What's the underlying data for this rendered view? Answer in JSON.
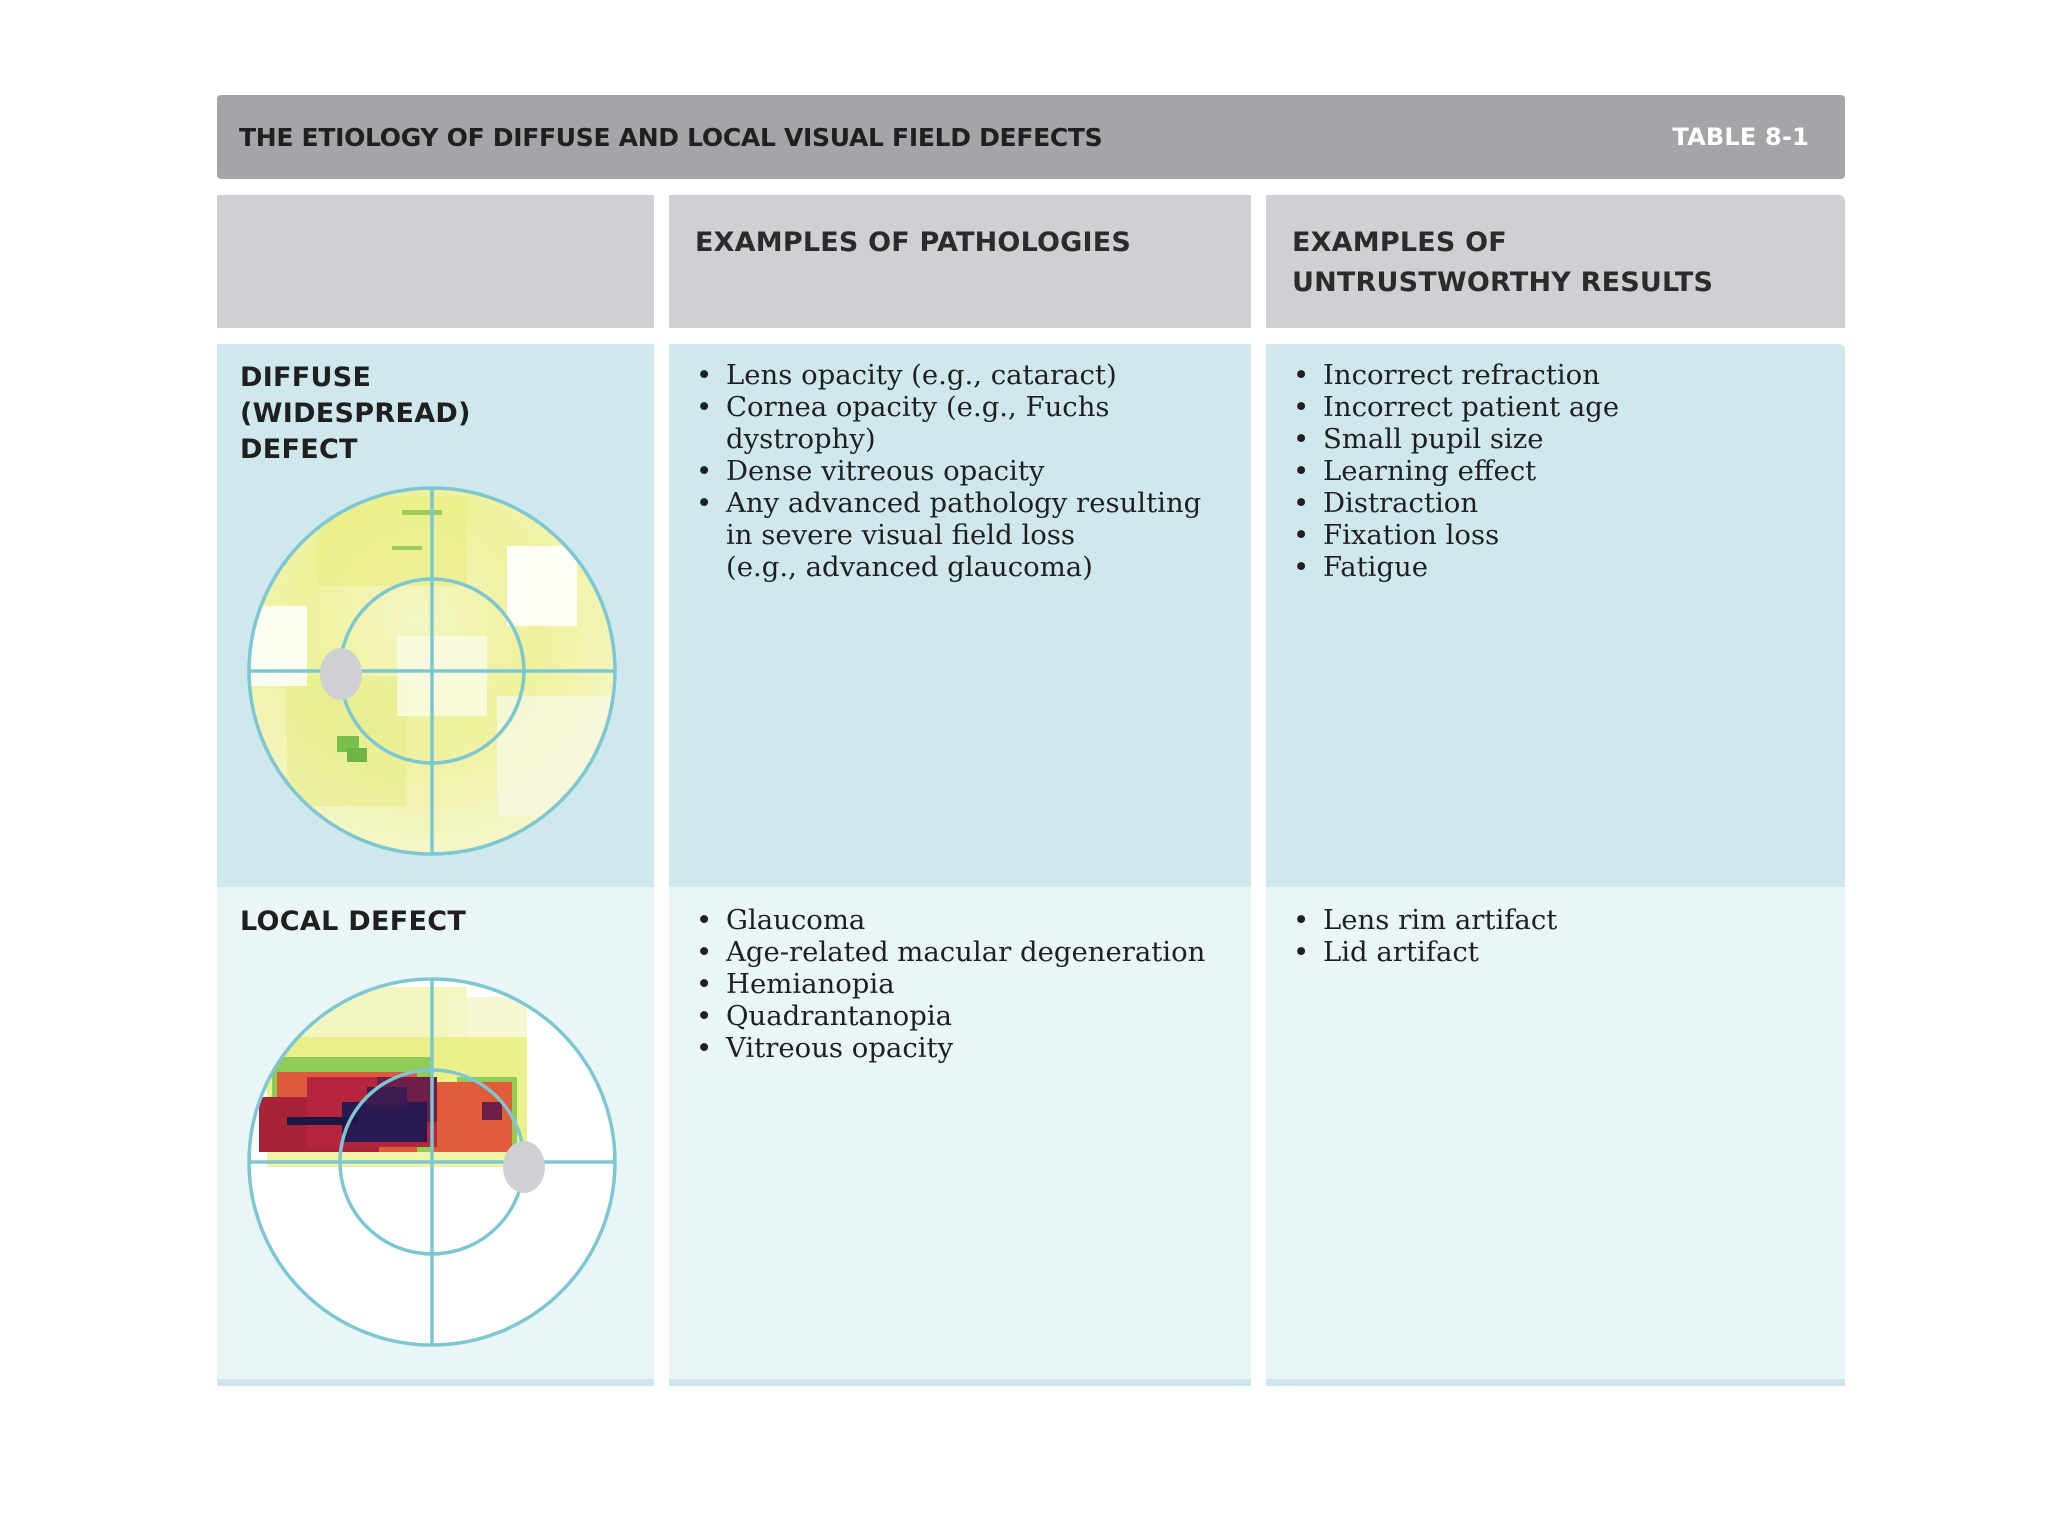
{
  "title": "THE ETIOLOGY OF DIFFUSE AND LOCAL VISUAL FIELD DEFECTS",
  "table_label": "TABLE 8-1",
  "headers": {
    "col1": "",
    "col2": "EXAMPLES OF PATHOLOGIES",
    "col3": "EXAMPLES OF UNTRUSTWORTHY RESULTS"
  },
  "rows": [
    {
      "label": "DIFFUSE (WIDESPREAD) DEFECT",
      "label_lines": [
        "DIFFUSE",
        "(WIDESPREAD)",
        "DEFECT"
      ],
      "pathologies": [
        "Lens opacity (e.g., cataract)",
        "Cornea opacity (e.g., Fuchs dystrophy)",
        "Dense vitreous opacity",
        "Any advanced pathology resulting\nin severe visual field loss\n(e.g., advanced glaucoma)"
      ],
      "untrustworthy": [
        "Incorrect refraction",
        "Incorrect patient age",
        "Small pupil size",
        "Learning effect",
        "Distraction",
        "Fixation loss",
        "Fatigue"
      ]
    },
    {
      "label": "LOCAL DEFECT",
      "label_lines": [
        "LOCAL DEFECT"
      ],
      "pathologies": [
        "Glaucoma",
        "Age-related macular degeneration",
        "Hemianopia",
        "Quadrantanopia",
        "Vitreous opacity"
      ],
      "untrustworthy": [
        "Lens rim artifact",
        "Lid artifact"
      ]
    }
  ],
  "colors": {
    "header_bar": "#a4a5a8",
    "header_cells": "#cfd0d3",
    "row_diffuse": "#cfe8ee",
    "row_local": "#eaf5f7",
    "field_outline": "#7cc7d2",
    "blind_spot": "#cfd0d3"
  }
}
